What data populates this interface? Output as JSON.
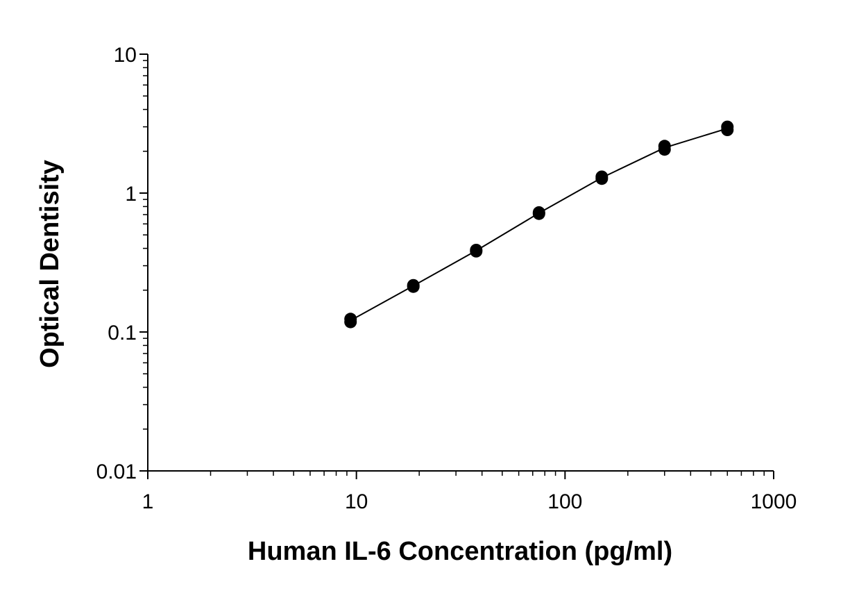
{
  "chart_data": {
    "type": "scatter",
    "title": "",
    "xlabel": "Human IL-6 Concentration (pg/ml)",
    "ylabel": "Optical Dentisity",
    "x_scale": "log",
    "y_scale": "log",
    "xlim": [
      1,
      1000
    ],
    "ylim": [
      0.01,
      10
    ],
    "x_ticks": [
      "1",
      "10",
      "100",
      "1000"
    ],
    "y_ticks": [
      "0.01",
      "0.1",
      "1",
      "10"
    ],
    "grid": false,
    "legend": "none",
    "marker_color": "#000000",
    "line_color": "#000000",
    "series": [
      {
        "x": [
          9.375,
          9.375,
          18.75,
          18.75,
          37.5,
          37.5,
          75,
          75,
          150,
          150,
          300,
          300,
          600,
          600
        ],
        "y": [
          0.118,
          0.124,
          0.212,
          0.217,
          0.381,
          0.389,
          0.71,
          0.725,
          1.27,
          1.31,
          2.06,
          2.18,
          2.85,
          3.0
        ],
        "fit_x": [
          9.375,
          18.75,
          37.5,
          75,
          150,
          300,
          600
        ],
        "fit_y": [
          0.121,
          0.215,
          0.385,
          0.718,
          1.29,
          2.12,
          2.92
        ]
      }
    ]
  }
}
